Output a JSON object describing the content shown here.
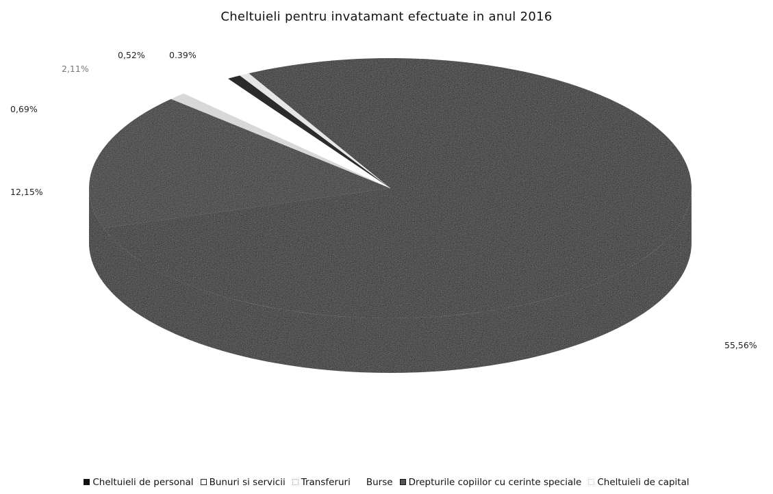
{
  "chart_data": {
    "type": "pie",
    "title": "Cheltuieli pentru invatamant efectuate in anul 2016",
    "categories": [
      "Cheltuieli de personal",
      "Bunuri si servicii",
      "Transferuri",
      "Burse",
      "Drepturile copiilor cu cerinte speciale",
      "Cheltuieli de capital"
    ],
    "values": [
      55.56,
      12.15,
      0.69,
      2.11,
      0.52,
      0.39
    ],
    "labels": [
      "55,56%",
      "12,15%",
      "0,69%",
      "2,11%",
      "0,52%",
      "0.39%"
    ],
    "colors": [
      "#050505",
      "#1a1a1a",
      "#d8d8d8",
      "#ffffff",
      "#2b2b2b",
      "#e6e6e6"
    ],
    "legend_position": "bottom",
    "style": "3d"
  }
}
